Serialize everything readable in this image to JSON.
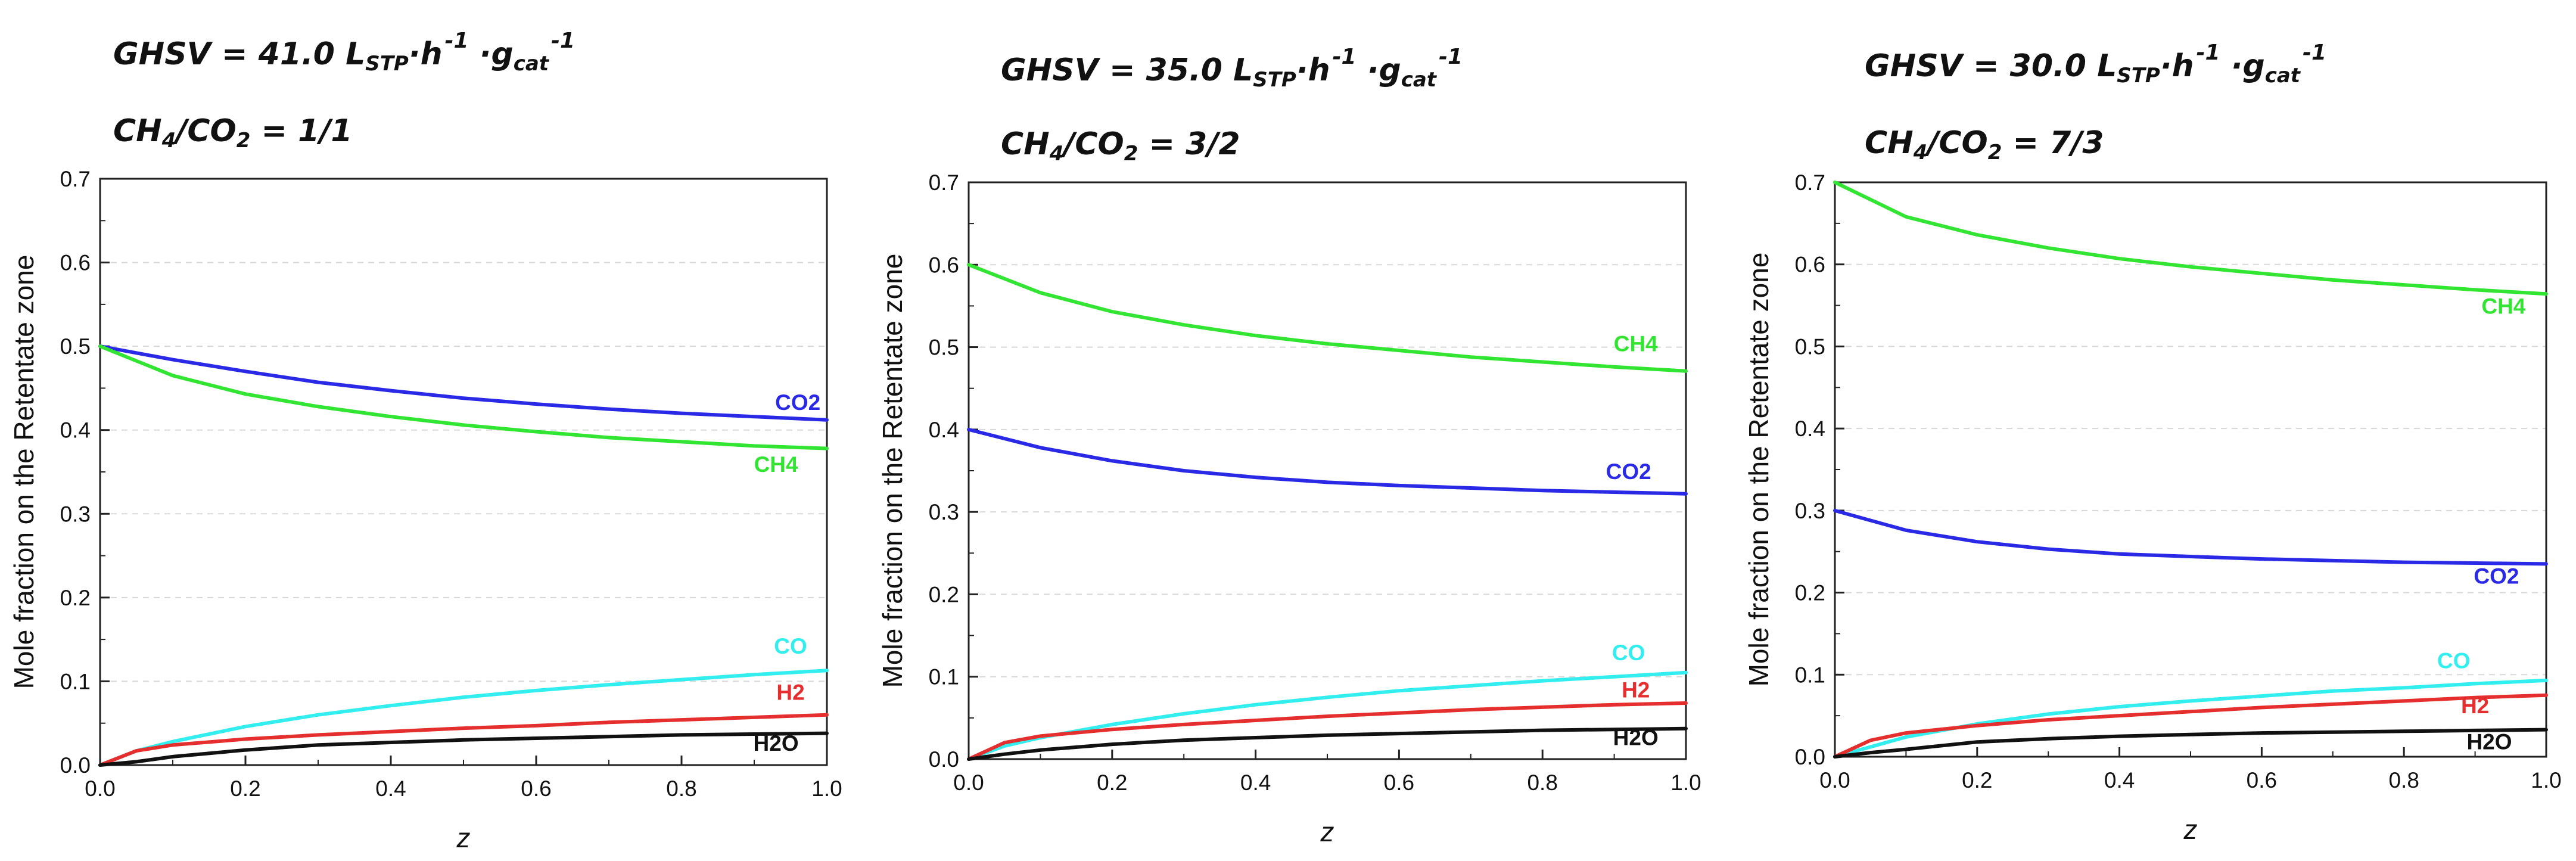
{
  "chart_data": [
    {
      "type": "line",
      "header": {
        "ghsv_prefix": "GHSV  = 41.0 L",
        "ghsv_sub": "STP",
        "ghsv_mid": "·h",
        "ghsv_exp1": "-1",
        "ghsv_dot": " ·g",
        "ghsv_sub2": "cat",
        "ghsv_exp2": "-1",
        "ratio_pre": "CH",
        "ratio_sub1": "4",
        "ratio_mid": "/CO",
        "ratio_sub2": "2",
        "ratio_post": " = 1/1"
      },
      "xlabel": "z",
      "ylabel": "Mole fraction on the Retentate zone",
      "xlim": [
        0,
        1
      ],
      "ylim": [
        0,
        0.7
      ],
      "xticks": [
        "0.0",
        "0.2",
        "0.4",
        "0.6",
        "0.8",
        "1.0"
      ],
      "yticks": [
        "0.0",
        "0.1",
        "0.2",
        "0.3",
        "0.4",
        "0.5",
        "0.6",
        "0.7"
      ],
      "series": [
        {
          "name": "CO2",
          "color": "#2a2ae6",
          "x": [
            0,
            0.1,
            0.2,
            0.3,
            0.4,
            0.5,
            0.6,
            0.7,
            0.8,
            0.9,
            1.0
          ],
          "values": [
            0.5,
            0.484,
            0.47,
            0.457,
            0.447,
            0.438,
            0.431,
            0.425,
            0.42,
            0.416,
            0.412
          ],
          "label_pos": [
            0.96,
            0.424
          ]
        },
        {
          "name": "CH4",
          "color": "#33e533",
          "x": [
            0,
            0.1,
            0.2,
            0.3,
            0.4,
            0.5,
            0.6,
            0.7,
            0.8,
            0.9,
            1.0
          ],
          "values": [
            0.5,
            0.465,
            0.443,
            0.428,
            0.416,
            0.406,
            0.398,
            0.391,
            0.386,
            0.381,
            0.378
          ],
          "label_pos": [
            0.93,
            0.35
          ]
        },
        {
          "name": "CO",
          "color": "#33eeee",
          "x": [
            0,
            0.05,
            0.1,
            0.2,
            0.3,
            0.4,
            0.5,
            0.6,
            0.7,
            0.8,
            0.9,
            1.0
          ],
          "values": [
            0,
            0.017,
            0.028,
            0.046,
            0.06,
            0.071,
            0.081,
            0.089,
            0.096,
            0.102,
            0.108,
            0.113
          ],
          "label_pos": [
            0.95,
            0.133
          ]
        },
        {
          "name": "H2",
          "color": "#e52e2e",
          "x": [
            0,
            0.05,
            0.1,
            0.2,
            0.3,
            0.4,
            0.5,
            0.6,
            0.7,
            0.8,
            0.9,
            1.0
          ],
          "values": [
            0,
            0.017,
            0.024,
            0.031,
            0.036,
            0.04,
            0.044,
            0.047,
            0.051,
            0.054,
            0.057,
            0.06
          ],
          "label_pos": [
            0.95,
            0.078
          ]
        },
        {
          "name": "H2O",
          "color": "#111111",
          "x": [
            0,
            0.05,
            0.1,
            0.2,
            0.3,
            0.4,
            0.5,
            0.6,
            0.7,
            0.8,
            0.9,
            1.0
          ],
          "values": [
            0,
            0.004,
            0.01,
            0.018,
            0.024,
            0.027,
            0.03,
            0.032,
            0.034,
            0.036,
            0.037,
            0.038
          ],
          "label_pos": [
            0.93,
            0.017
          ]
        }
      ]
    },
    {
      "type": "line",
      "header": {
        "ghsv_prefix": "GHSV  = 35.0 L",
        "ghsv_sub": "STP",
        "ghsv_mid": "·h",
        "ghsv_exp1": "-1",
        "ghsv_dot": " ·g",
        "ghsv_sub2": "cat",
        "ghsv_exp2": "-1",
        "ratio_pre": "CH",
        "ratio_sub1": "4",
        "ratio_mid": "/CO",
        "ratio_sub2": "2",
        "ratio_post": " = 3/2"
      },
      "xlabel": "z",
      "ylabel": "Mole fraction on the Retentate zone",
      "xlim": [
        0,
        1
      ],
      "ylim": [
        0,
        0.7
      ],
      "xticks": [
        "0.0",
        "0.2",
        "0.4",
        "0.6",
        "0.8",
        "1.0"
      ],
      "yticks": [
        "0.0",
        "0.1",
        "0.2",
        "0.3",
        "0.4",
        "0.5",
        "0.6",
        "0.7"
      ],
      "series": [
        {
          "name": "CH4",
          "color": "#33e533",
          "x": [
            0,
            0.1,
            0.2,
            0.3,
            0.4,
            0.5,
            0.6,
            0.7,
            0.8,
            0.9,
            1.0
          ],
          "values": [
            0.6,
            0.566,
            0.543,
            0.527,
            0.514,
            0.504,
            0.496,
            0.488,
            0.482,
            0.476,
            0.471
          ],
          "label_pos": [
            0.93,
            0.495
          ]
        },
        {
          "name": "CO2",
          "color": "#2a2ae6",
          "x": [
            0,
            0.1,
            0.2,
            0.3,
            0.4,
            0.5,
            0.6,
            0.7,
            0.8,
            0.9,
            1.0
          ],
          "values": [
            0.4,
            0.378,
            0.362,
            0.35,
            0.342,
            0.336,
            0.332,
            0.329,
            0.326,
            0.324,
            0.322
          ],
          "label_pos": [
            0.92,
            0.34
          ]
        },
        {
          "name": "CO",
          "color": "#33eeee",
          "x": [
            0,
            0.05,
            0.1,
            0.2,
            0.3,
            0.4,
            0.5,
            0.6,
            0.7,
            0.8,
            0.9,
            1.0
          ],
          "values": [
            0,
            0.016,
            0.026,
            0.042,
            0.055,
            0.066,
            0.075,
            0.083,
            0.089,
            0.095,
            0.1,
            0.105
          ],
          "label_pos": [
            0.92,
            0.12
          ]
        },
        {
          "name": "H2",
          "color": "#e52e2e",
          "x": [
            0,
            0.05,
            0.1,
            0.2,
            0.3,
            0.4,
            0.5,
            0.6,
            0.7,
            0.8,
            0.9,
            1.0
          ],
          "values": [
            0,
            0.02,
            0.028,
            0.036,
            0.042,
            0.047,
            0.052,
            0.056,
            0.06,
            0.063,
            0.066,
            0.068
          ],
          "label_pos": [
            0.93,
            0.075
          ]
        },
        {
          "name": "H2O",
          "color": "#111111",
          "x": [
            0,
            0.05,
            0.1,
            0.2,
            0.3,
            0.4,
            0.5,
            0.6,
            0.7,
            0.8,
            0.9,
            1.0
          ],
          "values": [
            0,
            0.006,
            0.011,
            0.018,
            0.023,
            0.026,
            0.029,
            0.031,
            0.033,
            0.035,
            0.036,
            0.037
          ],
          "label_pos": [
            0.93,
            0.017
          ]
        }
      ]
    },
    {
      "type": "line",
      "header": {
        "ghsv_prefix": "GHSV  = 30.0 L",
        "ghsv_sub": "STP",
        "ghsv_mid": "·h",
        "ghsv_exp1": "-1",
        "ghsv_dot": " ·g",
        "ghsv_sub2": "cat",
        "ghsv_exp2": "-1",
        "ratio_pre": "CH",
        "ratio_sub1": "4",
        "ratio_mid": "/CO",
        "ratio_sub2": "2",
        "ratio_post": " = 7/3"
      },
      "xlabel": "z",
      "ylabel": "Mole fraction on the Retentate zone",
      "xlim": [
        0,
        1
      ],
      "ylim": [
        0,
        0.7
      ],
      "xticks": [
        "0.0",
        "0.2",
        "0.4",
        "0.6",
        "0.8",
        "1.0"
      ],
      "yticks": [
        "0.0",
        "0.1",
        "0.2",
        "0.3",
        "0.4",
        "0.5",
        "0.6",
        "0.7"
      ],
      "series": [
        {
          "name": "CH4",
          "color": "#33e533",
          "x": [
            0,
            0.1,
            0.2,
            0.3,
            0.4,
            0.5,
            0.6,
            0.7,
            0.8,
            0.9,
            1.0
          ],
          "values": [
            0.7,
            0.658,
            0.636,
            0.62,
            0.607,
            0.597,
            0.589,
            0.581,
            0.575,
            0.569,
            0.564
          ],
          "label_pos": [
            0.94,
            0.54
          ]
        },
        {
          "name": "CO2",
          "color": "#2a2ae6",
          "x": [
            0,
            0.1,
            0.2,
            0.3,
            0.4,
            0.5,
            0.6,
            0.7,
            0.8,
            0.9,
            1.0
          ],
          "values": [
            0.3,
            0.276,
            0.262,
            0.253,
            0.247,
            0.244,
            0.241,
            0.239,
            0.237,
            0.236,
            0.235
          ],
          "label_pos": [
            0.93,
            0.211
          ]
        },
        {
          "name": "CO",
          "color": "#33eeee",
          "x": [
            0,
            0.05,
            0.1,
            0.2,
            0.3,
            0.4,
            0.5,
            0.6,
            0.7,
            0.8,
            0.9,
            1.0
          ],
          "values": [
            0,
            0.012,
            0.024,
            0.04,
            0.052,
            0.061,
            0.068,
            0.074,
            0.08,
            0.084,
            0.089,
            0.093
          ],
          "label_pos": [
            0.87,
            0.108
          ]
        },
        {
          "name": "H2",
          "color": "#e52e2e",
          "x": [
            0,
            0.05,
            0.1,
            0.2,
            0.3,
            0.4,
            0.5,
            0.6,
            0.7,
            0.8,
            0.9,
            1.0
          ],
          "values": [
            0,
            0.02,
            0.029,
            0.038,
            0.045,
            0.05,
            0.055,
            0.06,
            0.064,
            0.068,
            0.072,
            0.075
          ],
          "label_pos": [
            0.9,
            0.053
          ]
        },
        {
          "name": "H2O",
          "color": "#111111",
          "x": [
            0,
            0.05,
            0.1,
            0.2,
            0.3,
            0.4,
            0.5,
            0.6,
            0.7,
            0.8,
            0.9,
            1.0
          ],
          "values": [
            0,
            0.005,
            0.009,
            0.018,
            0.022,
            0.025,
            0.027,
            0.029,
            0.03,
            0.031,
            0.032,
            0.033
          ],
          "label_pos": [
            0.92,
            0.009
          ]
        }
      ]
    }
  ]
}
